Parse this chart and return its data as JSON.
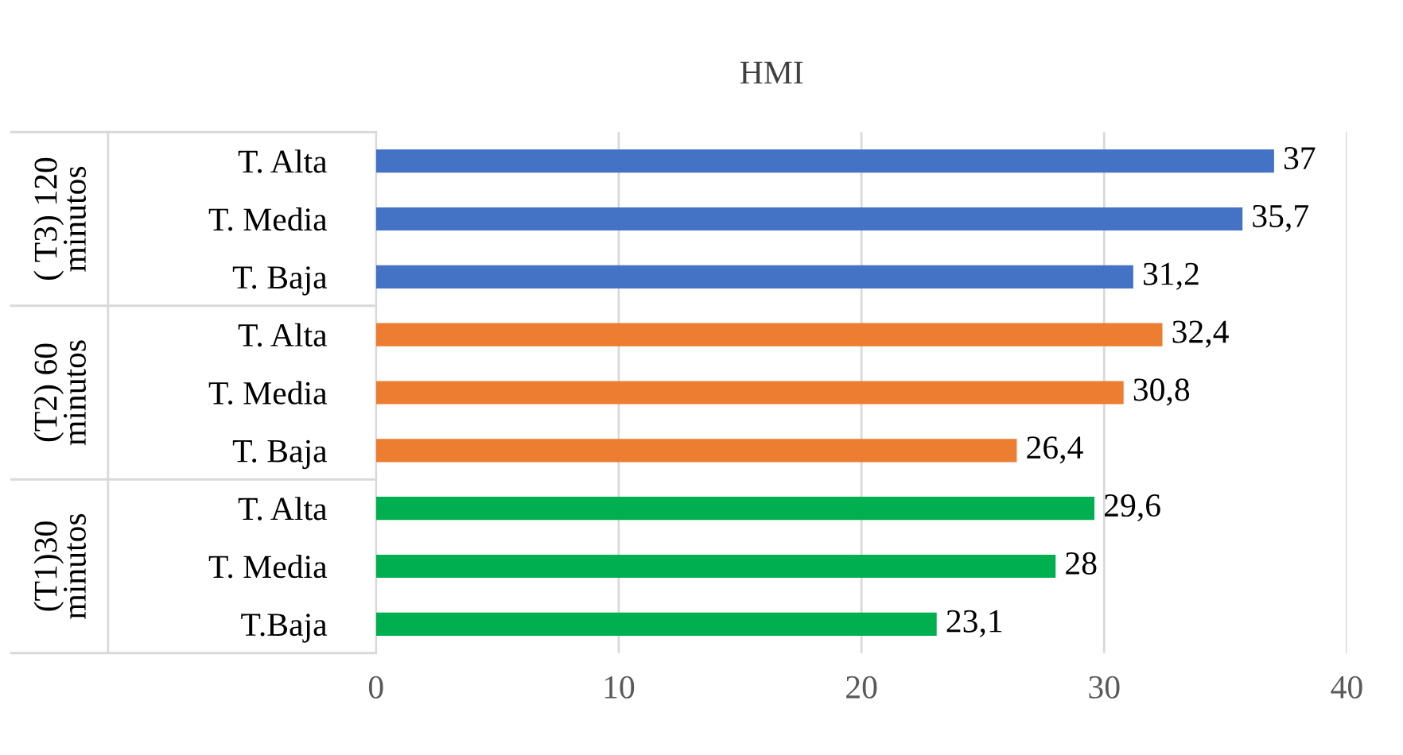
{
  "chart_data": {
    "type": "bar",
    "orientation": "horizontal",
    "title": "HMI",
    "categories": [
      "T. Alta",
      "T. Media",
      "T. Baja",
      "T. Alta",
      "T. Media",
      "T. Baja",
      "T. Alta",
      "T. Media",
      "T.Baja"
    ],
    "values": [
      37,
      35.7,
      31.2,
      32.4,
      30.8,
      26.4,
      29.6,
      28,
      23.1
    ],
    "value_labels": [
      "37",
      "35,7",
      "31,2",
      "32,4",
      "30,8",
      "26,4",
      "29,6",
      "28",
      "23,1"
    ],
    "colors": [
      "#4472c4",
      "#4472c4",
      "#4472c4",
      "#ed7d31",
      "#ed7d31",
      "#ed7d31",
      "#00b050",
      "#00b050",
      "#00b050"
    ],
    "annotations": [
      "( T3) 120 minutos",
      "(T2) 60 minutos",
      "(T1)30 minutos"
    ],
    "xlim": [
      0,
      40
    ],
    "xticks": [
      0,
      10,
      20,
      30,
      40
    ],
    "grid": "x",
    "legend": false
  }
}
